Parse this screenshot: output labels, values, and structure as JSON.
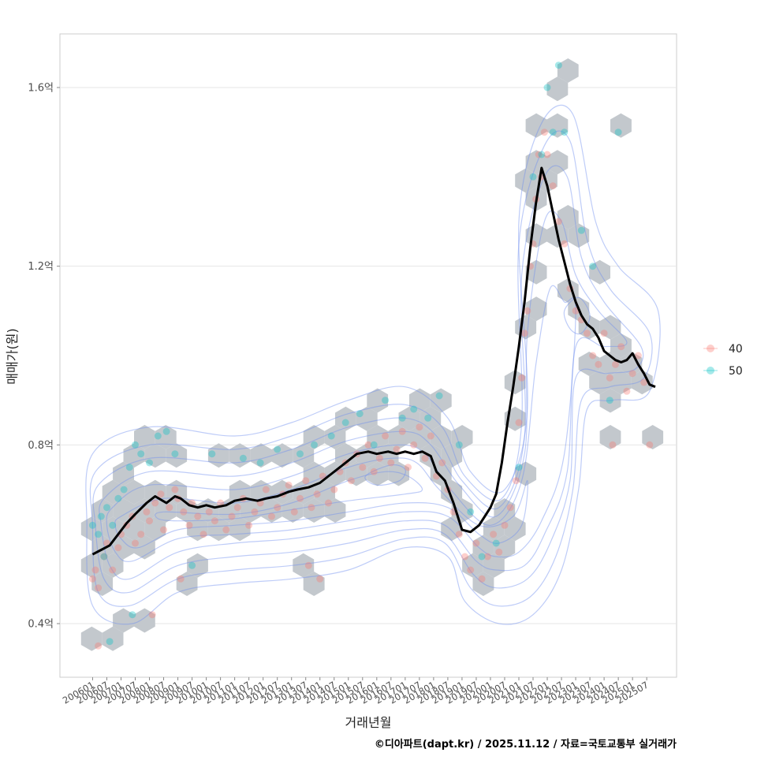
{
  "chart_data": {
    "type": "scatter",
    "title": "",
    "xlabel": "거래년월",
    "ylabel": "매매가(원)",
    "caption": "©디아파트(dapt.kr) / 2025.11.12 / 자료=국토교통부 실거래가",
    "y_ticks": [
      {
        "value": 0.4,
        "label": "0.4억"
      },
      {
        "value": 0.8,
        "label": "0.8억"
      },
      {
        "value": 1.2,
        "label": "1.2억"
      },
      {
        "value": 1.6,
        "label": "1.6억"
      }
    ],
    "ylim": [
      0.28,
      1.72
    ],
    "xlim": [
      2004.85,
      2026.55
    ],
    "x_ticks": [
      "200601",
      "200607",
      "200701",
      "200707",
      "200801",
      "200807",
      "200901",
      "200907",
      "201001",
      "201007",
      "201101",
      "201107",
      "201201",
      "201207",
      "201301",
      "201307",
      "201401",
      "201407",
      "201501",
      "201507",
      "201601",
      "201607",
      "201701",
      "201707",
      "201801",
      "201807",
      "201901",
      "201907",
      "202001",
      "202007",
      "202101",
      "202107",
      "202201",
      "202207",
      "202301",
      "202307",
      "202401",
      "202407",
      "202501",
      "202507"
    ],
    "legend": {
      "title": "",
      "position": "right",
      "items": [
        {
          "label": "40",
          "color": "#F8766D"
        },
        {
          "label": "50",
          "color": "#00BFC4"
        }
      ]
    },
    "series": [
      {
        "name": "moving-average",
        "color": "#000000",
        "x": [
          2006.0,
          2006.3,
          2006.6,
          2006.9,
          2007.2,
          2007.5,
          2007.9,
          2008.2,
          2008.6,
          2008.9,
          2009.1,
          2009.4,
          2009.7,
          2010.0,
          2010.3,
          2010.7,
          2011.0,
          2011.4,
          2011.8,
          2012.1,
          2012.5,
          2012.9,
          2013.2,
          2013.6,
          2014.0,
          2014.3,
          2014.7,
          2015.0,
          2015.3,
          2015.7,
          2016.0,
          2016.4,
          2016.7,
          2017.0,
          2017.3,
          2017.6,
          2017.9,
          2018.1,
          2018.4,
          2018.7,
          2019.0,
          2019.3,
          2019.6,
          2019.8,
          2020.0,
          2020.2,
          2020.4,
          2020.6,
          2020.8,
          2021.0,
          2021.2,
          2021.4,
          2021.6,
          2021.8,
          2022.0,
          2022.2,
          2022.4,
          2022.6,
          2022.8,
          2023.0,
          2023.2,
          2023.4,
          2023.6,
          2023.8,
          2024.0,
          2024.2,
          2024.4,
          2024.6,
          2024.8,
          2025.0,
          2025.2,
          2025.4,
          2025.6,
          2025.8
        ],
        "y": [
          0.555,
          0.565,
          0.575,
          0.6,
          0.625,
          0.645,
          0.67,
          0.685,
          0.67,
          0.685,
          0.68,
          0.665,
          0.66,
          0.665,
          0.66,
          0.665,
          0.675,
          0.68,
          0.675,
          0.68,
          0.685,
          0.695,
          0.7,
          0.705,
          0.715,
          0.73,
          0.75,
          0.765,
          0.78,
          0.785,
          0.78,
          0.785,
          0.78,
          0.785,
          0.78,
          0.785,
          0.775,
          0.74,
          0.72,
          0.67,
          0.61,
          0.605,
          0.62,
          0.64,
          0.66,
          0.69,
          0.76,
          0.85,
          0.93,
          1.02,
          1.12,
          1.24,
          1.34,
          1.42,
          1.38,
          1.32,
          1.26,
          1.21,
          1.16,
          1.12,
          1.09,
          1.07,
          1.06,
          1.04,
          1.01,
          1.0,
          0.99,
          0.985,
          0.99,
          1.005,
          0.98,
          0.96,
          0.935,
          0.93
        ]
      },
      {
        "name": "40",
        "color": "#F8766D",
        "points": [
          [
            2006.0,
            0.5
          ],
          [
            2006.1,
            0.52
          ],
          [
            2006.2,
            0.48
          ],
          [
            2006.4,
            0.55
          ],
          [
            2006.5,
            0.58
          ],
          [
            2006.7,
            0.52
          ],
          [
            2006.9,
            0.57
          ],
          [
            2007.0,
            0.6
          ],
          [
            2007.2,
            0.62
          ],
          [
            2007.4,
            0.64
          ],
          [
            2007.5,
            0.58
          ],
          [
            2007.7,
            0.6
          ],
          [
            2007.9,
            0.65
          ],
          [
            2008.0,
            0.63
          ],
          [
            2008.2,
            0.67
          ],
          [
            2008.4,
            0.69
          ],
          [
            2008.5,
            0.61
          ],
          [
            2008.7,
            0.66
          ],
          [
            2008.9,
            0.7
          ],
          [
            2009.0,
            0.68
          ],
          [
            2009.2,
            0.65
          ],
          [
            2009.4,
            0.62
          ],
          [
            2009.5,
            0.67
          ],
          [
            2009.7,
            0.64
          ],
          [
            2009.9,
            0.6
          ],
          [
            2010.1,
            0.65
          ],
          [
            2010.3,
            0.63
          ],
          [
            2010.5,
            0.67
          ],
          [
            2010.7,
            0.61
          ],
          [
            2010.9,
            0.64
          ],
          [
            2011.1,
            0.66
          ],
          [
            2011.3,
            0.68
          ],
          [
            2011.5,
            0.62
          ],
          [
            2011.7,
            0.65
          ],
          [
            2011.9,
            0.67
          ],
          [
            2012.1,
            0.7
          ],
          [
            2012.3,
            0.64
          ],
          [
            2012.5,
            0.66
          ],
          [
            2012.7,
            0.69
          ],
          [
            2012.9,
            0.71
          ],
          [
            2013.1,
            0.65
          ],
          [
            2013.3,
            0.68
          ],
          [
            2013.5,
            0.72
          ],
          [
            2013.7,
            0.66
          ],
          [
            2013.9,
            0.69
          ],
          [
            2014.1,
            0.73
          ],
          [
            2014.3,
            0.67
          ],
          [
            2014.5,
            0.7
          ],
          [
            2014.7,
            0.74
          ],
          [
            2014.9,
            0.76
          ],
          [
            2015.1,
            0.72
          ],
          [
            2015.3,
            0.78
          ],
          [
            2015.5,
            0.75
          ],
          [
            2015.7,
            0.8
          ],
          [
            2015.9,
            0.74
          ],
          [
            2016.1,
            0.77
          ],
          [
            2016.3,
            0.82
          ],
          [
            2016.5,
            0.76
          ],
          [
            2016.7,
            0.79
          ],
          [
            2016.9,
            0.83
          ],
          [
            2017.1,
            0.75
          ],
          [
            2017.3,
            0.8
          ],
          [
            2017.5,
            0.84
          ],
          [
            2017.7,
            0.77
          ],
          [
            2017.9,
            0.82
          ],
          [
            2018.1,
            0.73
          ],
          [
            2018.3,
            0.76
          ],
          [
            2018.5,
            0.7
          ],
          [
            2018.7,
            0.65
          ],
          [
            2018.9,
            0.6
          ],
          [
            2019.1,
            0.55
          ],
          [
            2019.3,
            0.52
          ],
          [
            2019.5,
            0.58
          ],
          [
            2019.7,
            0.5
          ],
          [
            2019.9,
            0.55
          ],
          [
            2020.1,
            0.6
          ],
          [
            2020.3,
            0.56
          ],
          [
            2020.5,
            0.62
          ],
          [
            2020.7,
            0.66
          ],
          [
            2020.9,
            0.72
          ],
          [
            2021.0,
            0.85
          ],
          [
            2021.1,
            0.95
          ],
          [
            2021.2,
            1.05
          ],
          [
            2021.3,
            1.1
          ],
          [
            2021.4,
            1.2
          ],
          [
            2021.5,
            1.25
          ],
          [
            2021.6,
            1.35
          ],
          [
            2021.7,
            1.45
          ],
          [
            2021.8,
            1.4
          ],
          [
            2021.9,
            1.5
          ],
          [
            2022.0,
            1.45
          ],
          [
            2022.2,
            1.38
          ],
          [
            2022.4,
            1.3
          ],
          [
            2022.6,
            1.25
          ],
          [
            2022.8,
            1.15
          ],
          [
            2023.0,
            1.1
          ],
          [
            2023.2,
            1.08
          ],
          [
            2023.4,
            1.05
          ],
          [
            2023.6,
            1.0
          ],
          [
            2023.8,
            0.98
          ],
          [
            2024.0,
            1.05
          ],
          [
            2024.2,
            0.95
          ],
          [
            2024.4,
            0.98
          ],
          [
            2024.6,
            1.02
          ],
          [
            2024.8,
            0.92
          ],
          [
            2025.0,
            0.96
          ],
          [
            2025.2,
            1.0
          ],
          [
            2025.4,
            0.94
          ],
          [
            2025.6,
            0.8
          ],
          [
            2024.3,
            0.8
          ],
          [
            2008.1,
            0.42
          ],
          [
            2006.2,
            0.35
          ],
          [
            2014.0,
            0.5
          ],
          [
            2013.6,
            0.53
          ],
          [
            2009.1,
            0.5
          ]
        ]
      },
      {
        "name": "50",
        "color": "#00BFC4",
        "points": [
          [
            2006.0,
            0.62
          ],
          [
            2006.2,
            0.6
          ],
          [
            2006.3,
            0.64
          ],
          [
            2006.5,
            0.66
          ],
          [
            2006.7,
            0.62
          ],
          [
            2006.9,
            0.68
          ],
          [
            2007.1,
            0.7
          ],
          [
            2007.3,
            0.75
          ],
          [
            2007.5,
            0.8
          ],
          [
            2007.7,
            0.78
          ],
          [
            2008.0,
            0.76
          ],
          [
            2008.3,
            0.82
          ],
          [
            2008.6,
            0.83
          ],
          [
            2008.9,
            0.78
          ],
          [
            2009.5,
            0.53
          ],
          [
            2010.2,
            0.78
          ],
          [
            2011.3,
            0.77
          ],
          [
            2011.9,
            0.76
          ],
          [
            2012.5,
            0.79
          ],
          [
            2013.3,
            0.78
          ],
          [
            2013.8,
            0.8
          ],
          [
            2014.4,
            0.82
          ],
          [
            2014.9,
            0.85
          ],
          [
            2015.4,
            0.87
          ],
          [
            2015.9,
            0.8
          ],
          [
            2016.3,
            0.9
          ],
          [
            2016.9,
            0.86
          ],
          [
            2017.3,
            0.88
          ],
          [
            2017.8,
            0.86
          ],
          [
            2018.2,
            0.91
          ],
          [
            2018.9,
            0.8
          ],
          [
            2019.3,
            0.65
          ],
          [
            2019.7,
            0.55
          ],
          [
            2020.2,
            0.58
          ],
          [
            2021.0,
            0.75
          ],
          [
            2021.5,
            1.4
          ],
          [
            2021.8,
            1.45
          ],
          [
            2022.0,
            1.6
          ],
          [
            2022.2,
            1.5
          ],
          [
            2022.4,
            1.65
          ],
          [
            2022.6,
            1.5
          ],
          [
            2023.2,
            1.28
          ],
          [
            2023.6,
            1.2
          ],
          [
            2024.2,
            0.9
          ],
          [
            2024.5,
            1.5
          ],
          [
            2006.4,
            0.55
          ],
          [
            2007.4,
            0.42
          ],
          [
            2006.6,
            0.36
          ]
        ]
      }
    ]
  }
}
